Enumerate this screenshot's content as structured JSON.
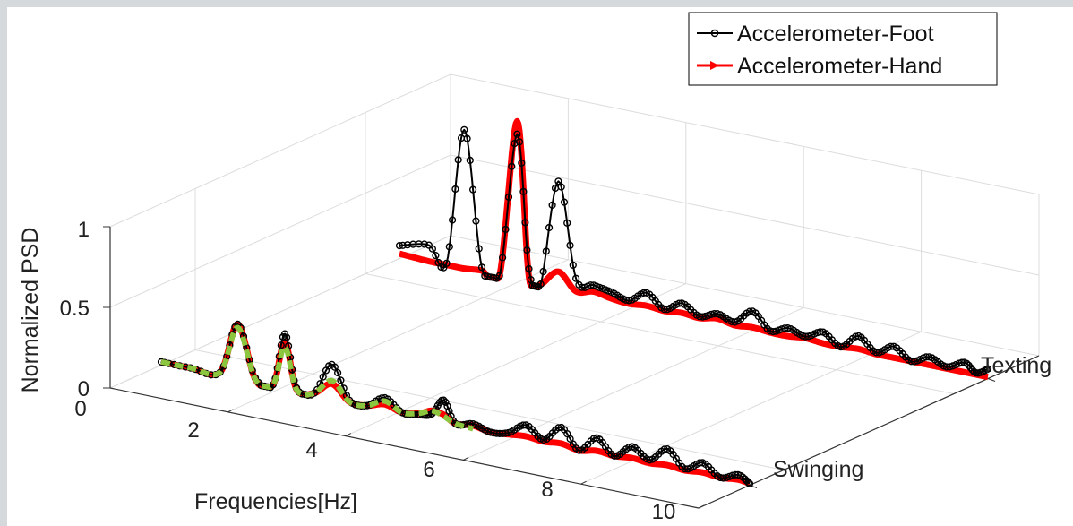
{
  "chart_data": {
    "type": "line",
    "projection": "3d-waterfall",
    "title": "",
    "xlabel": "Frequencies[Hz]",
    "ylabel": "",
    "zlabel": "Normalized PSD",
    "xlim": [
      0,
      10
    ],
    "zlim": [
      0,
      1
    ],
    "x_ticks": [
      "2",
      "4",
      "6",
      "8",
      "10"
    ],
    "z_ticks": [
      "0",
      "0.5",
      "1"
    ],
    "x_origin_label": "0",
    "y_categories": [
      "Swinging",
      "Texting"
    ],
    "legend": {
      "position": "top-right",
      "entries": [
        "Accelerometer-Foot",
        "Accelerometer-Hand"
      ]
    },
    "grid": true,
    "series": [
      {
        "name": "Accelerometer-Foot",
        "color": "#000000",
        "marker": "circle",
        "category": "Swinging",
        "x": [
          0.0,
          0.5,
          1.0,
          1.3,
          1.6,
          1.9,
          2.1,
          2.3,
          2.6,
          2.9,
          3.2,
          3.5,
          3.8,
          4.1,
          4.4,
          4.6,
          4.8,
          5.0,
          5.3,
          5.6,
          5.9,
          6.2,
          6.5,
          6.8,
          7.1,
          7.4,
          7.7,
          8.0,
          8.3,
          8.6,
          8.9,
          9.2,
          9.5,
          9.8,
          10.0
        ],
        "y": [
          0.02,
          0.02,
          0.03,
          0.35,
          0.04,
          0.02,
          0.35,
          0.03,
          0.02,
          0.22,
          0.02,
          0.01,
          0.08,
          0.01,
          0.02,
          0.04,
          0.14,
          0.01,
          0.03,
          0.0,
          0.02,
          0.09,
          0.02,
          0.12,
          0.0,
          0.1,
          0.01,
          0.09,
          0.03,
          0.12,
          0.02,
          0.08,
          0.01,
          0.05,
          0.01
        ]
      },
      {
        "name": "Accelerometer-Hand",
        "color": "#ff0000",
        "marker": "triangle",
        "category": "Swinging",
        "x": [
          0.0,
          0.5,
          1.0,
          1.3,
          1.6,
          1.9,
          2.1,
          2.3,
          2.6,
          2.9,
          3.2,
          3.5,
          3.8,
          4.1,
          4.4,
          4.6,
          4.8,
          5.0,
          5.3,
          5.6,
          5.9,
          6.2,
          6.5,
          6.8,
          7.1,
          7.4,
          7.7,
          8.0,
          8.3,
          8.6,
          8.9,
          9.2,
          9.5,
          9.8,
          10.0
        ],
        "y": [
          0.02,
          0.02,
          0.03,
          0.35,
          0.03,
          0.02,
          0.3,
          0.02,
          0.02,
          0.1,
          0.01,
          0.01,
          0.04,
          0.01,
          0.03,
          0.06,
          0.05,
          0.01,
          0.02,
          0.0,
          0.01,
          0.02,
          0.01,
          0.02,
          0.0,
          0.02,
          0.01,
          0.02,
          0.01,
          0.02,
          0.01,
          0.02,
          0.01,
          0.02,
          0.01
        ]
      },
      {
        "name": "",
        "color": "#8cc63f",
        "marker": "dashed",
        "category": "Swinging",
        "x": [
          0.0,
          0.5,
          1.0,
          1.3,
          1.6,
          1.9,
          2.1,
          2.3,
          2.6,
          2.9,
          3.2,
          3.5,
          3.8,
          4.1,
          4.4,
          4.6,
          4.8,
          5.0,
          5.3
        ],
        "y": [
          0.02,
          0.02,
          0.03,
          0.33,
          0.03,
          0.02,
          0.27,
          0.02,
          0.02,
          0.12,
          0.01,
          0.01,
          0.06,
          0.01,
          0.03,
          0.06,
          0.04,
          0.01,
          0.0
        ]
      },
      {
        "name": "Accelerometer-Foot",
        "color": "#000000",
        "marker": "circle",
        "category": "Texting",
        "x": [
          0.0,
          0.5,
          0.8,
          1.1,
          1.4,
          1.7,
          2.0,
          2.2,
          2.4,
          2.7,
          3.0,
          3.3,
          3.6,
          3.9,
          4.2,
          4.5,
          4.8,
          5.1,
          5.4,
          5.7,
          6.0,
          6.3,
          6.6,
          6.9,
          7.2,
          7.5,
          7.8,
          8.1,
          8.4,
          8.7,
          9.0,
          9.3,
          9.6,
          9.8,
          10.0
        ],
        "y": [
          0.08,
          0.12,
          0.03,
          0.88,
          0.05,
          0.02,
          0.92,
          0.1,
          0.02,
          0.68,
          0.1,
          0.08,
          0.06,
          0.03,
          0.1,
          0.02,
          0.08,
          0.02,
          0.06,
          0.03,
          0.12,
          0.02,
          0.06,
          0.03,
          0.08,
          0.01,
          0.1,
          0.02,
          0.08,
          0.01,
          0.06,
          0.02,
          0.07,
          0.02,
          0.06
        ]
      },
      {
        "name": "Accelerometer-Hand",
        "color": "#ff0000",
        "marker": "triangle",
        "category": "Texting",
        "x": [
          0.0,
          0.5,
          0.8,
          1.1,
          1.4,
          1.7,
          2.0,
          2.2,
          2.4,
          2.7,
          3.0,
          3.3,
          3.6,
          3.9,
          4.2,
          4.5,
          4.8,
          5.1,
          5.4,
          5.7,
          6.0,
          6.3,
          6.6,
          6.9,
          7.2,
          7.5,
          7.8,
          8.1,
          8.4,
          8.7,
          9.0,
          9.3,
          9.6,
          9.8,
          10.0
        ],
        "y": [
          0.03,
          0.02,
          0.02,
          0.02,
          0.03,
          0.02,
          1.0,
          0.05,
          0.02,
          0.12,
          0.02,
          0.04,
          0.02,
          0.01,
          0.02,
          0.01,
          0.02,
          0.01,
          0.03,
          0.01,
          0.02,
          0.01,
          0.01,
          0.02,
          0.01,
          0.01,
          0.02,
          0.01,
          0.01,
          0.01,
          0.01,
          0.01,
          0.01,
          0.01,
          0.01
        ]
      }
    ]
  }
}
